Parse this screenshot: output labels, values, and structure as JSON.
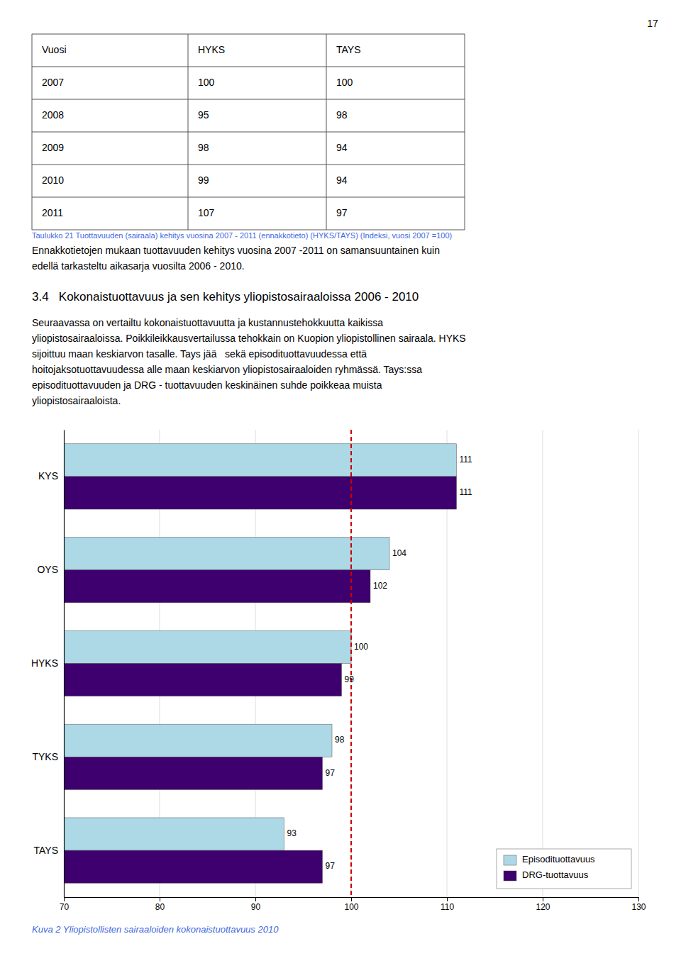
{
  "page_number": "17",
  "table": {
    "headers": [
      "Vuosi",
      "HYKS",
      "TAYS"
    ],
    "rows": [
      [
        "2007",
        "100",
        "100"
      ],
      [
        "2008",
        "95",
        "98"
      ],
      [
        "2009",
        "98",
        "94"
      ],
      [
        "2010",
        "99",
        "94"
      ],
      [
        "2011",
        "107",
        "97"
      ]
    ],
    "caption": "Taulukko 21 Tuottavuuden (sairaala)  kehitys vuosina 2007 - 2011 (ennakkotieto) (HYKS/TAYS) (Indeksi, vuosi 2007 =100)"
  },
  "paragraphs": [
    [
      "Ennakkotietojen mukaan tuottavuuden kehitys vuosina 2007 -2011 on samansuuntainen kuin",
      "edellä tarkasteltu aikasarja vuosilta 2006 - 2010."
    ],
    [
      "Seuraavassa on vertailtu kokonaistuottavuutta ja kustannustehokkuutta kaikissa",
      "yliopistosairaaloissa. Poikkileikkausvertailussa tehokkain on Kuopion yliopistollinen sairaala. HYKS",
      "sijoittuu maan keskiarvon tasalle. Tays jää   sekä episodituottavuudessa että",
      "hoitojaksotuottavuudessa alle maan keskiarvon yliopistosairaaloiden ryhmässä. Tays:ssa",
      "episodituottavuuden ja DRG - tuottavuuden keskinäinen suhde poikkeaa muista",
      "yliopistosairaaloista."
    ]
  ],
  "section_title": "3.4   Kokonaistuottavuus ja sen kehitys yliopistosairaaloissa 2006 - 2010",
  "chart_data": {
    "type": "bar",
    "orientation": "horizontal",
    "title": "Kuva 2 Yliopistollisten sairaaloiden kokonaistuottavuus 2010",
    "categories": [
      "TAYS",
      "TYKS",
      "HYKS",
      "OYS",
      "KYS"
    ],
    "series": [
      {
        "name": "Episodituottavuus",
        "color": "#ADD8E6",
        "values": [
          93,
          98,
          100,
          104,
          111
        ]
      },
      {
        "name": "DRG-tuottavuus",
        "color": "#3D006E",
        "values": [
          97,
          97,
          99,
          102,
          111
        ]
      }
    ],
    "xlim": [
      70,
      130
    ],
    "xticks": [
      70,
      80,
      90,
      100,
      110,
      120,
      130
    ],
    "grid": true,
    "legend": "lower right",
    "data_labels": true,
    "refline": {
      "value": 100,
      "color": "#CC0000",
      "line_style": "dashed"
    }
  }
}
